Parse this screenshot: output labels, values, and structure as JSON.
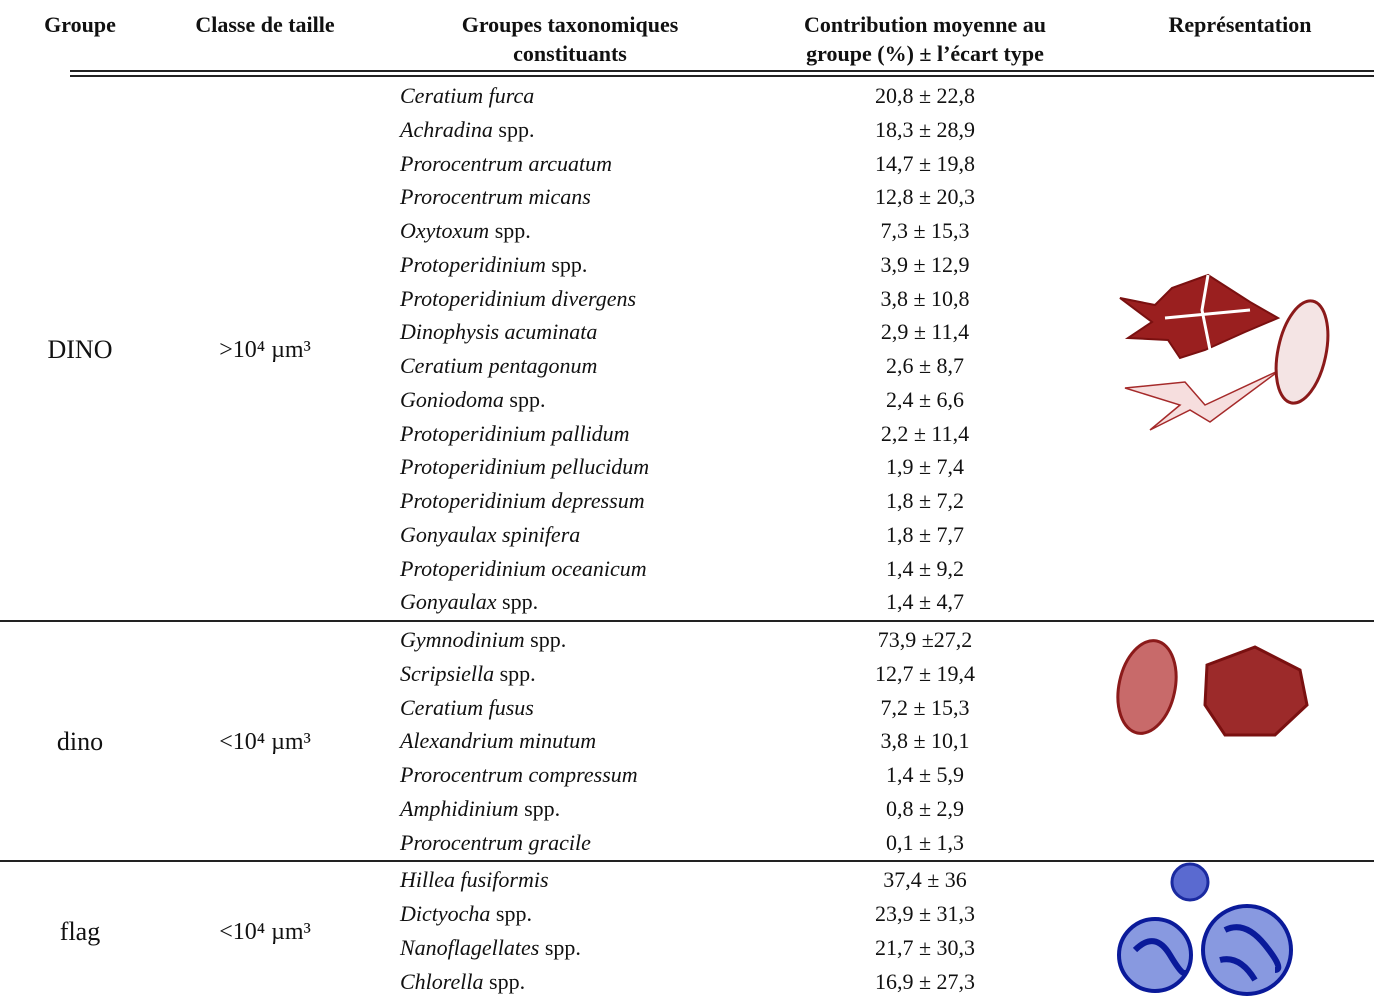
{
  "header": {
    "columns": [
      "Groupe",
      "Classe de taille",
      "Groupes taxonomiques constituants",
      "Contribution moyenne au groupe (%) ± l’écart type",
      "Représentation"
    ]
  },
  "groups": [
    {
      "group": "DINO",
      "size_class": ">10⁴ µm³",
      "taxa": [
        {
          "italic": "Ceratium furca",
          "contribution": "20,8 ± 22,8"
        },
        {
          "italic": "Achradina",
          "roman": "spp.",
          "contribution": "18,3 ± 28,9"
        },
        {
          "italic": "Prorocentrum arcuatum",
          "contribution": "14,7 ± 19,8"
        },
        {
          "italic": "Prorocentrum micans",
          "contribution": "12,8 ± 20,3"
        },
        {
          "italic": "Oxytoxum",
          "roman": "spp.",
          "contribution": "7,3 ± 15,3"
        },
        {
          "italic": "Protoperidinium",
          "roman": "spp.",
          "contribution": "3,9 ± 12,9"
        },
        {
          "italic": "Protoperidinium divergens",
          "contribution": "3,8 ± 10,8"
        },
        {
          "italic": "Dinophysis acuminata",
          "contribution": "2,9 ± 11,4"
        },
        {
          "italic": "Ceratium pentagonum",
          "contribution": "2,6 ± 8,7"
        },
        {
          "italic": "Goniodoma",
          "roman": "spp.",
          "contribution": "2,4 ± 6,6"
        },
        {
          "italic": "Protoperidinium pallidum",
          "contribution": "2,2 ± 11,4"
        },
        {
          "italic": "Protoperidinium pellucidum",
          "contribution": "1,9 ± 7,4"
        },
        {
          "italic": "Protoperidinium depressum",
          "contribution": "1,8 ± 7,2"
        },
        {
          "italic": "Gonyaulax spinifera",
          "contribution": "1,8 ± 7,7"
        },
        {
          "italic": "Protoperidinium oceanicum",
          "contribution": "1,4 ± 9,2"
        },
        {
          "italic": "Gonyaulax",
          "roman": "spp.",
          "contribution": "1,4 ± 4,7"
        }
      ]
    },
    {
      "group": "dino",
      "size_class": "<10⁴ µm³",
      "taxa": [
        {
          "italic": "Gymnodinium",
          "roman": "spp.",
          "contribution": "73,9 ±27,2"
        },
        {
          "italic": "Scripsiella",
          "roman": "spp.",
          "contribution": "12,7 ± 19,4"
        },
        {
          "italic": "Ceratium fusus",
          "contribution": "7,2 ± 15,3"
        },
        {
          "italic": "Alexandrium minutum",
          "contribution": "3,8 ± 10,1"
        },
        {
          "italic": "Prorocentrum compressum",
          "contribution": "1,4 ± 5,9"
        },
        {
          "italic": "Amphidinium",
          "roman": "spp.",
          "contribution": "0,8 ± 2,9"
        },
        {
          "italic": "Prorocentrum gracile",
          "contribution": "0,1 ± 1,3"
        }
      ]
    },
    {
      "group": "flag",
      "size_class": "<10⁴ µm³",
      "taxa": [
        {
          "italic": "Hillea fusiformis",
          "contribution": "37,4 ± 36"
        },
        {
          "italic": "Dictyocha",
          "roman": "spp.",
          "contribution": "23,9 ± 31,3"
        },
        {
          "italic": "Nanoflagellates",
          "roman": "spp.",
          "contribution": "21,7 ± 30,3"
        },
        {
          "italic": "Chlorella",
          "roman": "spp.",
          "contribution": "16,9 ± 27,3"
        }
      ]
    }
  ]
}
